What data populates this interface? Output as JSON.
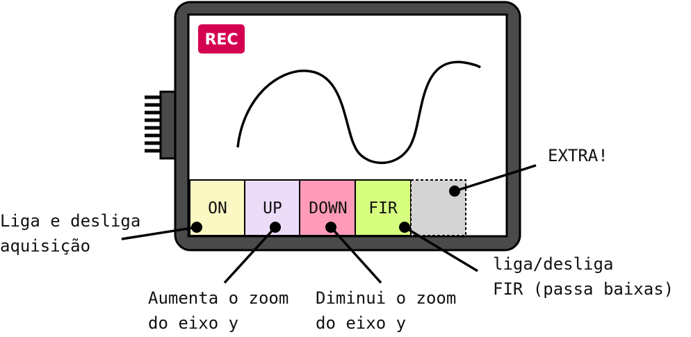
{
  "device": {
    "rec_badge": "REC",
    "rec_color": "#d40050",
    "frame_color": "#4a4a4a"
  },
  "buttons": [
    {
      "id": "on",
      "label": "ON",
      "color": "#fcf8c4"
    },
    {
      "id": "up",
      "label": "UP",
      "color": "#ecdcf8"
    },
    {
      "id": "down",
      "label": "DOWN",
      "color": "#ff9bb8"
    },
    {
      "id": "fir",
      "label": "FIR",
      "color": "#d6ff80"
    },
    {
      "id": "extra",
      "label": "",
      "color": "#d4d4d4"
    }
  ],
  "annotations": {
    "on": [
      "Liga e desliga",
      "aquisição"
    ],
    "up": [
      "Aumenta o zoom",
      "do eixo y"
    ],
    "down": [
      "Diminui o zoom",
      "do eixo y"
    ],
    "fir": [
      "liga/desliga",
      "FIR (passa baixas)"
    ],
    "extra": [
      "EXTRA!"
    ]
  }
}
